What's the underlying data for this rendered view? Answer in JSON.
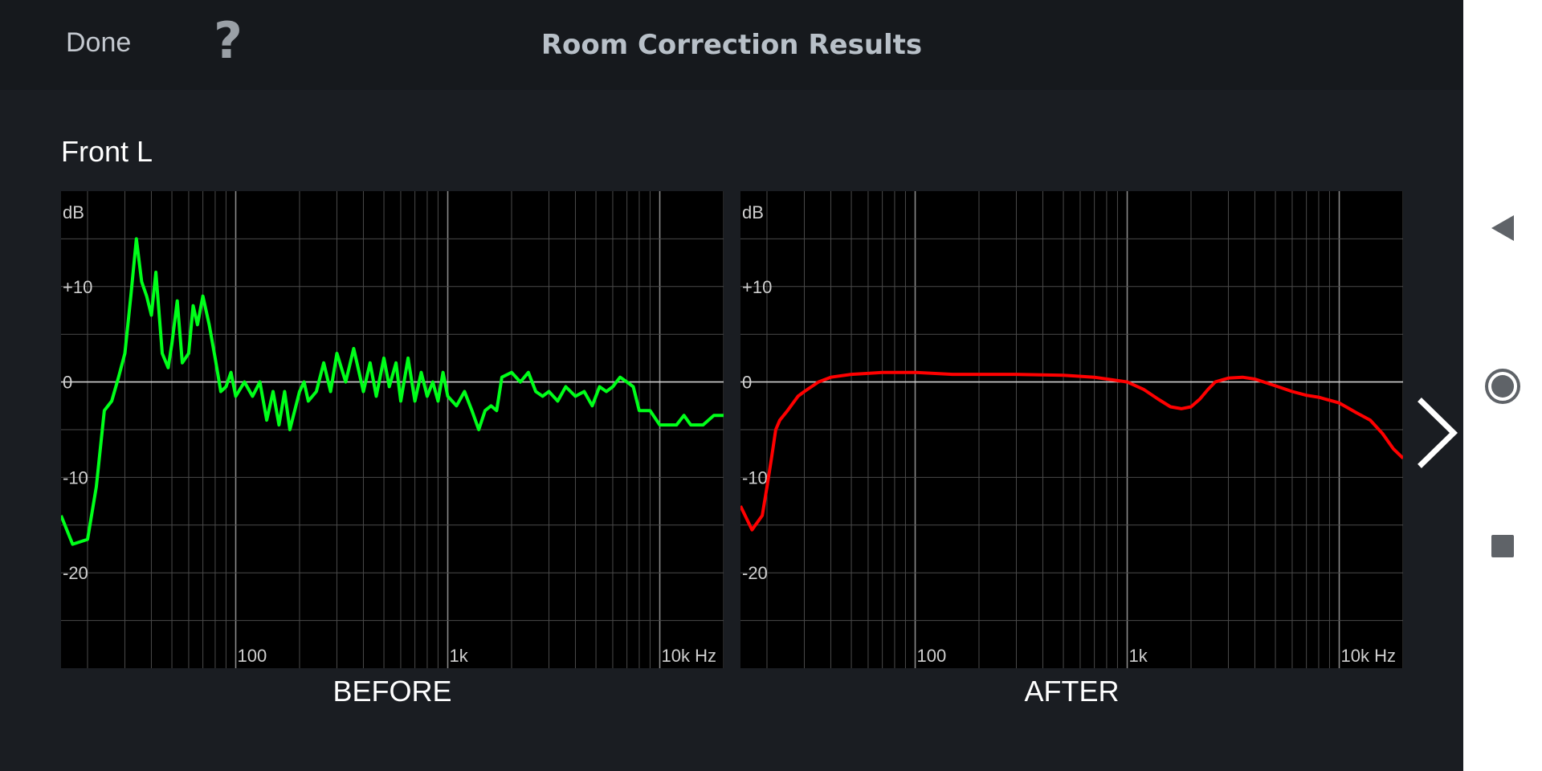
{
  "header": {
    "done_label": "Done",
    "help_label": "?",
    "title": "Room Correction Results"
  },
  "channel": "Front L",
  "axes": {
    "y_unit": "dB",
    "y_ticks": [
      "+10",
      "0",
      "-10",
      "-20"
    ],
    "x_ticks": [
      "100",
      "1k",
      "10k Hz"
    ]
  },
  "charts": {
    "before_label": "BEFORE",
    "after_label": "AFTER"
  },
  "colors": {
    "before_line": "#00ff1a",
    "after_line": "#ff0000",
    "grid": "#4a4a4a",
    "axis_zero": "#cfcfcf"
  },
  "icons": {
    "next": "chevron-right-icon",
    "back": "triangle-back-icon",
    "home": "circle-home-icon",
    "recents": "square-recents-icon"
  },
  "chart_data": [
    {
      "type": "line",
      "title": "BEFORE",
      "xlabel": "Hz",
      "ylabel": "dB",
      "x_scale": "log",
      "xlim": [
        15,
        20000
      ],
      "ylim": [
        -30,
        20
      ],
      "grid": true,
      "series": [
        {
          "x": [
            15,
            17,
            20,
            22,
            24,
            26,
            28,
            30,
            32,
            34,
            36,
            38,
            40,
            42,
            45,
            48,
            50,
            53,
            56,
            60,
            63,
            66,
            70,
            75,
            80,
            85,
            90,
            95,
            100,
            110,
            120,
            130,
            140,
            150,
            160,
            170,
            180,
            200,
            210,
            220,
            240,
            260,
            280,
            300,
            330,
            360,
            400,
            430,
            460,
            500,
            530,
            570,
            600,
            650,
            700,
            750,
            800,
            850,
            900,
            950,
            1000,
            1100,
            1200,
            1300,
            1400,
            1500,
            1600,
            1700,
            1800,
            2000,
            2200,
            2400,
            2600,
            2800,
            3000,
            3300,
            3600,
            4000,
            4400,
            4800,
            5200,
            5600,
            6000,
            6500,
            7000,
            7500,
            8000,
            9000,
            10000,
            11000,
            12000,
            13000,
            14000,
            16000,
            18000,
            20000
          ],
          "y": [
            -14,
            -17,
            -16.5,
            -11,
            -3,
            -2,
            0.5,
            3,
            9,
            15,
            10.5,
            9,
            7,
            11.5,
            3,
            1.5,
            4,
            8.5,
            2,
            3,
            8,
            6,
            9,
            6,
            2.5,
            -1,
            -0.5,
            1,
            -1.5,
            0,
            -1.5,
            0,
            -4,
            -1,
            -4.5,
            -1,
            -5,
            -1,
            0,
            -2,
            -1,
            2,
            -1,
            3,
            0,
            3.5,
            -1,
            2,
            -1.5,
            2.5,
            -0.5,
            2,
            -2,
            2.5,
            -2,
            1,
            -1.5,
            0,
            -2,
            1,
            -1.5,
            -2.5,
            -1,
            -3,
            -5,
            -3,
            -2.5,
            -3,
            0.5,
            1,
            0,
            1,
            -1,
            -1.5,
            -1,
            -2,
            -0.5,
            -1.5,
            -1,
            -2.5,
            -0.5,
            -1,
            -0.5,
            0.5,
            0,
            -0.5,
            -3,
            -3,
            -4.5,
            -4.5,
            -4.5,
            -3.5,
            -4.5,
            -4.5,
            -3.5,
            -3.5
          ]
        }
      ]
    },
    {
      "type": "line",
      "title": "AFTER",
      "xlabel": "Hz",
      "ylabel": "dB",
      "x_scale": "log",
      "xlim": [
        15,
        20000
      ],
      "ylim": [
        -30,
        20
      ],
      "grid": true,
      "series": [
        {
          "x": [
            15,
            17,
            19,
            20,
            21,
            22,
            23,
            25,
            28,
            30,
            35,
            40,
            50,
            60,
            70,
            85,
            100,
            150,
            200,
            300,
            500,
            700,
            1000,
            1200,
            1400,
            1600,
            1800,
            2000,
            2200,
            2400,
            2600,
            3000,
            3500,
            4000,
            5000,
            6000,
            7000,
            8000,
            10000,
            12000,
            14000,
            16000,
            18000,
            20000
          ],
          "y": [
            -13,
            -15.5,
            -14,
            -11,
            -8,
            -5,
            -4,
            -3,
            -1.5,
            -1,
            0,
            0.5,
            0.8,
            0.9,
            1,
            1,
            1,
            0.8,
            0.8,
            0.8,
            0.7,
            0.5,
            0,
            -0.8,
            -1.8,
            -2.6,
            -2.8,
            -2.6,
            -1.8,
            -0.8,
            0,
            0.4,
            0.5,
            0.3,
            -0.4,
            -1,
            -1.4,
            -1.6,
            -2.2,
            -3.2,
            -4,
            -5.4,
            -7,
            -8
          ]
        }
      ]
    }
  ]
}
